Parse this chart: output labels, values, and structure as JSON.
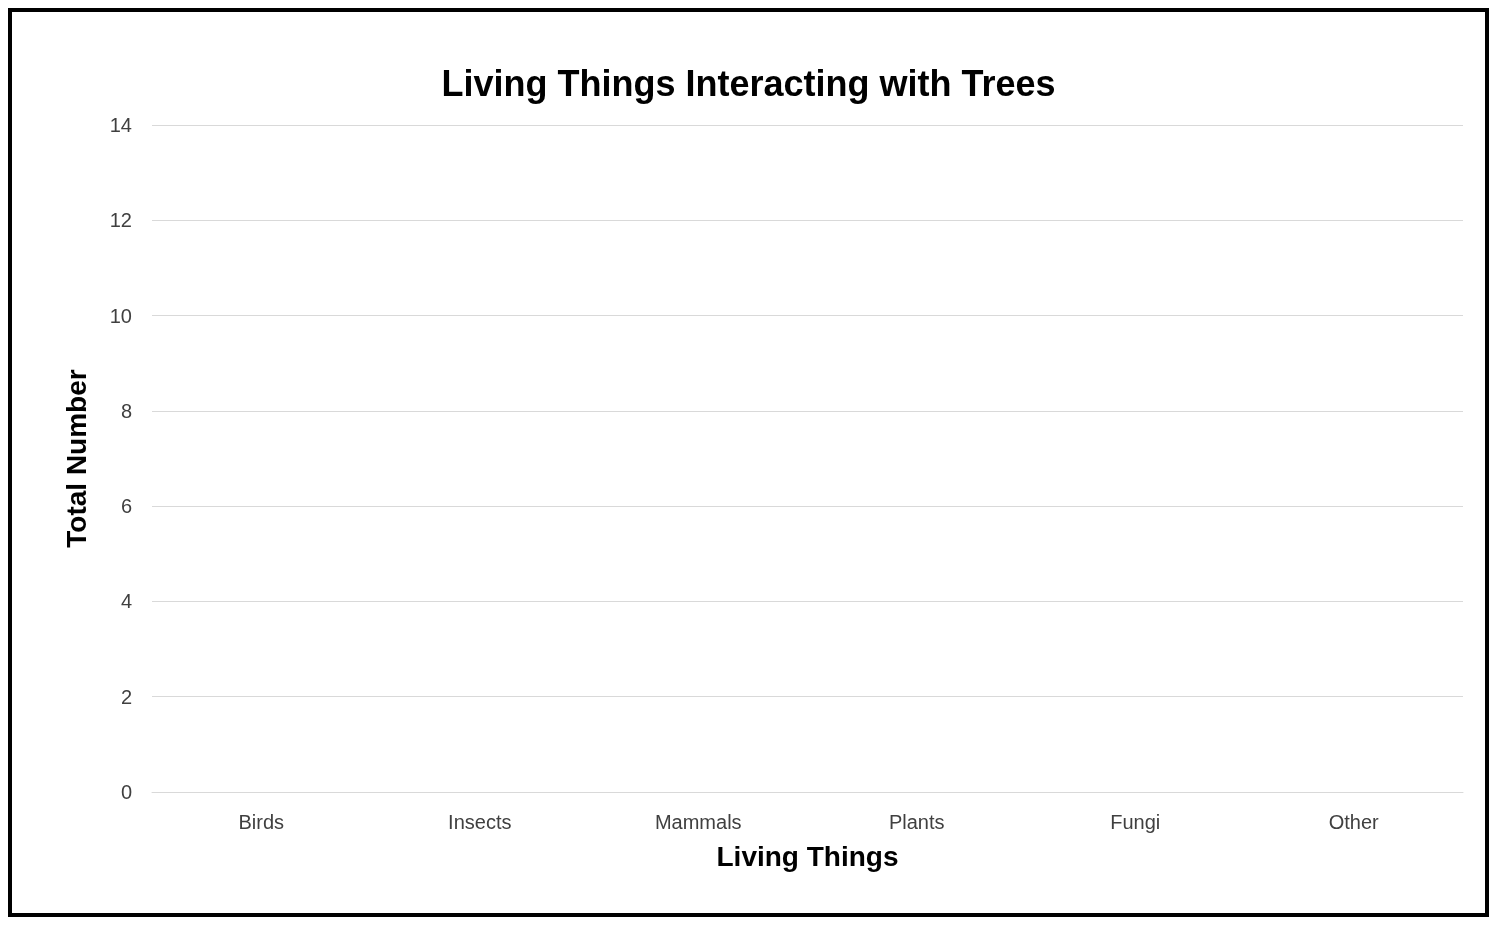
{
  "chart_data": {
    "type": "bar",
    "title": "Living Things Interacting with Trees",
    "xlabel": "Living Things",
    "ylabel": "Total Number",
    "categories": [
      "Birds",
      "Insects",
      "Mammals",
      "Plants",
      "Fungi",
      "Other"
    ],
    "values": [
      null,
      null,
      null,
      null,
      null,
      null
    ],
    "ylim": [
      0,
      14
    ],
    "yticks": [
      0,
      2,
      4,
      6,
      8,
      10,
      12,
      14
    ],
    "grid": "y"
  }
}
